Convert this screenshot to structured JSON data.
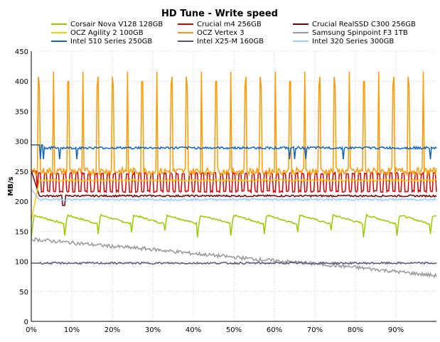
{
  "chart_data": {
    "type": "line",
    "title": "HD Tune - Write speed",
    "xlabel": "",
    "ylabel": "MB/s",
    "x_tick_labels": [
      "0%",
      "10%",
      "20%",
      "30%",
      "40%",
      "50%",
      "60%",
      "70%",
      "80%",
      "90%"
    ],
    "x_ticks": [
      0,
      10,
      20,
      30,
      40,
      50,
      60,
      70,
      80,
      90
    ],
    "xlim": [
      0,
      100
    ],
    "y_tick_labels": [
      "0",
      "50",
      "100",
      "150",
      "200",
      "250",
      "300",
      "350",
      "400",
      "450"
    ],
    "y_ticks": [
      0,
      50,
      100,
      150,
      200,
      250,
      300,
      350,
      400,
      450
    ],
    "ylim": [
      0,
      450
    ],
    "grid": true,
    "legend_position": "top",
    "series": [
      {
        "name": "Corsair Nova V128 128GB",
        "color": "#99cc00",
        "pattern": "sawtooth",
        "base": 168,
        "peak": 177,
        "low": 140,
        "period_pct": 8.2,
        "start_y": 175
      },
      {
        "name": "Crucial m4 256GB",
        "color": "#dd0000",
        "pattern": "oscillate",
        "base": 215,
        "peak": 248,
        "period_pct": 1.55,
        "start_y": 250
      },
      {
        "name": "Crucial RealSSD C300 256GB",
        "color": "#7a0000",
        "pattern": "flat",
        "base": 209,
        "start_y": 251,
        "dip": 193
      },
      {
        "name": "OCZ Agility 2 100GB",
        "color": "#ffcc00",
        "pattern": "flat",
        "base": 235,
        "start_y": 168
      },
      {
        "name": "OCZ Vertex 3",
        "color": "#ff9900",
        "pattern": "spikes",
        "base": 250,
        "peak": 420,
        "period_pct": 3.65,
        "start_y": 250
      },
      {
        "name": "Samsung Spinpoint F3 1TB",
        "color": "#999999",
        "pattern": "decline",
        "points": [
          [
            0,
            137
          ],
          [
            10,
            131
          ],
          [
            20,
            125
          ],
          [
            30,
            120
          ],
          [
            40,
            113
          ],
          [
            50,
            107
          ],
          [
            60,
            101
          ],
          [
            70,
            96
          ],
          [
            80,
            90
          ],
          [
            90,
            83
          ],
          [
            100,
            76
          ]
        ]
      },
      {
        "name": "Intel 510 Series 250GB",
        "color": "#1166bb",
        "pattern": "flat-dips",
        "base": 289,
        "dip": 270,
        "start_y": 294
      },
      {
        "name": "Intel X25-M 160GB",
        "color": "#555577",
        "pattern": "flat",
        "base": 97,
        "start_y": 97
      },
      {
        "name": "Intel 320 Series 300GB",
        "color": "#99ccff",
        "pattern": "flat",
        "base": 203,
        "start_y": 220
      }
    ]
  }
}
